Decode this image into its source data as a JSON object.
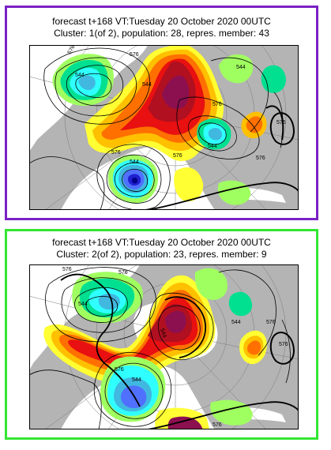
{
  "panels": [
    {
      "title_line1": "forecast t+168 VT:Tuesday 20 October 2020 00UTC",
      "title_line2": "Cluster: 1(of 2), population: 28, repres. member: 43",
      "border_color": "#7a22c4",
      "contour_labels": [
        "576",
        "576",
        "544",
        "544",
        "544",
        "576",
        "576",
        "544",
        "576",
        "544",
        "576",
        "576"
      ]
    },
    {
      "title_line1": "forecast t+168 VT:Tuesday 20 October 2020 00UTC",
      "title_line2": "Cluster: 2(of 2), population: 23, repres. member: 9",
      "border_color": "#33e633",
      "contour_labels": [
        "576",
        "576",
        "544",
        "544",
        "544",
        "576",
        "576",
        "544",
        "576",
        "576"
      ]
    }
  ],
  "colors": {
    "land": "#b4b4b4",
    "sea": "#ffffff",
    "anomaly_pos": [
      "#ffff33",
      "#ffc000",
      "#ff7000",
      "#e81010",
      "#b01020",
      "#8c1050"
    ],
    "anomaly_neg": [
      "#a0ff60",
      "#00e090",
      "#30ffff",
      "#40b8e0",
      "#5070ff",
      "#2020d0",
      "#000088"
    ]
  }
}
